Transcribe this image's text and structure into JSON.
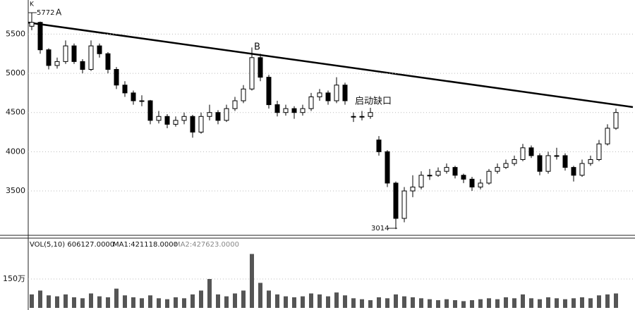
{
  "chart_data": {
    "type": "candlestick",
    "panel_label": "K",
    "annotations": {
      "high": "5772",
      "a": "A",
      "b": "B",
      "gap": "启动缺口",
      "low": "3014"
    },
    "ohlc": [
      [
        5600,
        5772,
        5550,
        5650
      ],
      [
        5650,
        5660,
        5250,
        5300
      ],
      [
        5300,
        5320,
        5050,
        5100
      ],
      [
        5100,
        5200,
        5060,
        5150
      ],
      [
        5150,
        5420,
        5120,
        5350
      ],
      [
        5350,
        5380,
        5120,
        5150
      ],
      [
        5150,
        5180,
        5000,
        5050
      ],
      [
        5050,
        5420,
        5030,
        5350
      ],
      [
        5350,
        5380,
        5200,
        5250
      ],
      [
        5250,
        5270,
        5000,
        5050
      ],
      [
        5050,
        5080,
        4800,
        4850
      ],
      [
        4850,
        4900,
        4700,
        4750
      ],
      [
        4750,
        4780,
        4600,
        4650
      ],
      [
        4650,
        4720,
        4580,
        4650
      ],
      [
        4650,
        4660,
        4350,
        4400
      ],
      [
        4400,
        4520,
        4360,
        4450
      ],
      [
        4450,
        4480,
        4300,
        4350
      ],
      [
        4350,
        4450,
        4320,
        4400
      ],
      [
        4400,
        4500,
        4350,
        4450
      ],
      [
        4450,
        4470,
        4180,
        4250
      ],
      [
        4250,
        4500,
        4230,
        4450
      ],
      [
        4450,
        4600,
        4400,
        4500
      ],
      [
        4500,
        4530,
        4350,
        4400
      ],
      [
        4400,
        4600,
        4380,
        4550
      ],
      [
        4550,
        4700,
        4520,
        4650
      ],
      [
        4650,
        4850,
        4620,
        4800
      ],
      [
        4800,
        5330,
        4780,
        5200
      ],
      [
        5200,
        5250,
        4900,
        4950
      ],
      [
        4950,
        4980,
        4550,
        4600
      ],
      [
        4600,
        4650,
        4450,
        4500
      ],
      [
        4500,
        4600,
        4460,
        4550
      ],
      [
        4550,
        4580,
        4420,
        4500
      ],
      [
        4500,
        4600,
        4460,
        4550
      ],
      [
        4550,
        4750,
        4520,
        4700
      ],
      [
        4700,
        4800,
        4650,
        4750
      ],
      [
        4750,
        4780,
        4600,
        4650
      ],
      [
        4650,
        4950,
        4620,
        4850
      ],
      [
        4850,
        4880,
        4600,
        4650
      ],
      [
        4450,
        4500,
        4380,
        4450
      ],
      [
        4450,
        4520,
        4400,
        4450
      ],
      [
        4450,
        4560,
        4420,
        4500
      ],
      [
        4150,
        4200,
        3950,
        4000
      ],
      [
        4000,
        4020,
        3550,
        3600
      ],
      [
        3600,
        3620,
        3014,
        3150
      ],
      [
        3150,
        3550,
        3100,
        3500
      ],
      [
        3500,
        3700,
        3420,
        3550
      ],
      [
        3550,
        3750,
        3520,
        3700
      ],
      [
        3700,
        3780,
        3640,
        3700
      ],
      [
        3700,
        3800,
        3680,
        3750
      ],
      [
        3750,
        3850,
        3720,
        3800
      ],
      [
        3800,
        3820,
        3660,
        3700
      ],
      [
        3700,
        3720,
        3600,
        3650
      ],
      [
        3650,
        3680,
        3500,
        3550
      ],
      [
        3550,
        3650,
        3520,
        3600
      ],
      [
        3600,
        3780,
        3580,
        3750
      ],
      [
        3750,
        3850,
        3720,
        3800
      ],
      [
        3800,
        3900,
        3780,
        3850
      ],
      [
        3850,
        3950,
        3820,
        3900
      ],
      [
        3900,
        4100,
        3880,
        4050
      ],
      [
        4050,
        4080,
        3920,
        3950
      ],
      [
        3950,
        3980,
        3700,
        3750
      ],
      [
        3750,
        4000,
        3720,
        3950
      ],
      [
        3950,
        4050,
        3900,
        3950
      ],
      [
        3950,
        3980,
        3760,
        3800
      ],
      [
        3800,
        3820,
        3620,
        3700
      ],
      [
        3700,
        3900,
        3680,
        3850
      ],
      [
        3850,
        3950,
        3820,
        3900
      ],
      [
        3900,
        4150,
        3880,
        4100
      ],
      [
        4100,
        4350,
        4080,
        4300
      ],
      [
        4300,
        4550,
        4280,
        4500
      ]
    ],
    "ylim": [
      2970,
      5935
    ],
    "yticks": [
      3500,
      4000,
      4500,
      5000,
      5500
    ],
    "grid": true,
    "up_color": "#ffffff",
    "down_color": "#000000",
    "volume": {
      "header": [
        "VOL(5,10) 606127.0000",
        "MA1:421118.0000",
        "MA2:427623.0000"
      ],
      "values": [
        700000,
        900000,
        650000,
        600000,
        700000,
        550000,
        500000,
        750000,
        600000,
        550000,
        1000000,
        650000,
        550000,
        500000,
        650000,
        500000,
        450000,
        550000,
        500000,
        700000,
        900000,
        1500000,
        700000,
        600000,
        750000,
        900000,
        2800000,
        1300000,
        900000,
        700000,
        600000,
        550000,
        600000,
        750000,
        700000,
        600000,
        800000,
        650000,
        500000,
        450000,
        400000,
        550000,
        500000,
        700000,
        600000,
        550000,
        500000,
        450000,
        400000,
        450000,
        400000,
        350000,
        400000,
        450000,
        500000,
        450000,
        550000,
        500000,
        700000,
        500000,
        450000,
        550000,
        500000,
        450000,
        500000,
        550000,
        500000,
        650000,
        700000,
        750000
      ],
      "ylim": [
        0,
        3000000
      ],
      "yticks": [
        {
          "value": 1500000,
          "label": "150万"
        }
      ],
      "color": "#555555"
    }
  }
}
